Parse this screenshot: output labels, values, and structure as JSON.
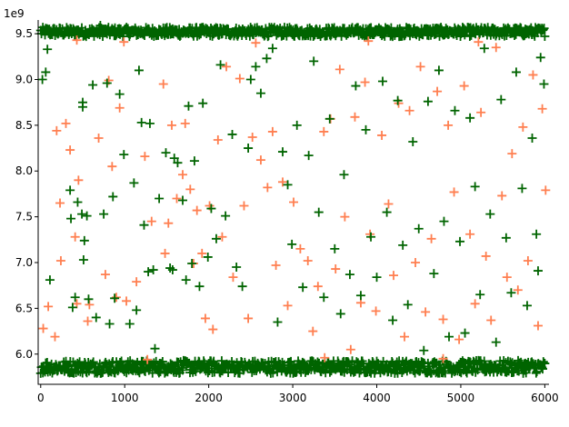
{
  "chart_data": {
    "type": "scatter",
    "title": "",
    "xlabel": "",
    "ylabel": "",
    "y_scale_label": "1e9",
    "xlim": [
      -30,
      6050
    ],
    "ylim": [
      5.67,
      9.65
    ],
    "x_ticks": [
      0,
      1000,
      2000,
      3000,
      4000,
      5000,
      6000
    ],
    "x_tick_labels": [
      "0",
      "1000",
      "2000",
      "3000",
      "4000",
      "5000",
      "6000"
    ],
    "y_ticks": [
      6.0,
      6.5,
      7.0,
      7.5,
      8.0,
      8.5,
      9.0,
      9.5
    ],
    "y_tick_labels": [
      "6.0",
      "6.5",
      "7.0",
      "7.5",
      "8.0",
      "8.5",
      "9.0",
      "9.5"
    ],
    "grid": false,
    "marker": "+",
    "series": [
      {
        "color": "#ff7f50",
        "points": [
          [
            30,
            6.28
          ],
          [
            90,
            6.52
          ],
          [
            170,
            6.19
          ],
          [
            190,
            8.44
          ],
          [
            230,
            7.65
          ],
          [
            240,
            7.02
          ],
          [
            300,
            8.52
          ],
          [
            350,
            8.23
          ],
          [
            410,
            7.28
          ],
          [
            430,
            6.55
          ],
          [
            450,
            7.9
          ],
          [
            560,
            6.36
          ],
          [
            580,
            6.54
          ],
          [
            690,
            8.36
          ],
          [
            770,
            6.87
          ],
          [
            810,
            8.99
          ],
          [
            850,
            8.05
          ],
          [
            900,
            6.62
          ],
          [
            940,
            8.69
          ],
          [
            1020,
            6.58
          ],
          [
            1140,
            6.79
          ],
          [
            1240,
            8.16
          ],
          [
            1320,
            7.45
          ],
          [
            1460,
            8.95
          ],
          [
            1480,
            7.1
          ],
          [
            1520,
            7.43
          ],
          [
            1560,
            8.5
          ],
          [
            1620,
            7.7
          ],
          [
            1690,
            7.96
          ],
          [
            1720,
            8.52
          ],
          [
            1780,
            7.8
          ],
          [
            1820,
            6.99
          ],
          [
            1860,
            7.57
          ],
          [
            1920,
            7.1
          ],
          [
            1960,
            6.39
          ],
          [
            2010,
            7.62
          ],
          [
            2050,
            6.27
          ],
          [
            2110,
            8.34
          ],
          [
            2160,
            7.28
          ],
          [
            2210,
            9.14
          ],
          [
            2290,
            6.84
          ],
          [
            2370,
            9.01
          ],
          [
            2420,
            7.62
          ],
          [
            2470,
            6.39
          ],
          [
            2520,
            8.37
          ],
          [
            2620,
            8.12
          ],
          [
            2700,
            7.82
          ],
          [
            2760,
            8.43
          ],
          [
            2800,
            6.97
          ],
          [
            2880,
            7.88
          ],
          [
            2940,
            6.53
          ],
          [
            3010,
            7.66
          ],
          [
            3090,
            7.15
          ],
          [
            3180,
            7.02
          ],
          [
            3240,
            6.25
          ],
          [
            3300,
            6.74
          ],
          [
            3370,
            8.43
          ],
          [
            3450,
            8.57
          ],
          [
            3510,
            6.93
          ],
          [
            3560,
            9.11
          ],
          [
            3620,
            7.5
          ],
          [
            3690,
            6.05
          ],
          [
            3740,
            8.59
          ],
          [
            3810,
            6.56
          ],
          [
            3860,
            8.97
          ],
          [
            3920,
            7.31
          ],
          [
            3990,
            6.47
          ],
          [
            4060,
            8.39
          ],
          [
            4140,
            7.64
          ],
          [
            4200,
            6.86
          ],
          [
            4260,
            8.74
          ],
          [
            4330,
            6.19
          ],
          [
            4390,
            8.66
          ],
          [
            4460,
            7.0
          ],
          [
            4520,
            9.14
          ],
          [
            4580,
            6.46
          ],
          [
            4650,
            7.26
          ],
          [
            4720,
            8.87
          ],
          [
            4790,
            6.38
          ],
          [
            4850,
            8.5
          ],
          [
            4920,
            7.77
          ],
          [
            4980,
            6.16
          ],
          [
            5040,
            8.93
          ],
          [
            5110,
            7.31
          ],
          [
            5170,
            6.55
          ],
          [
            5240,
            8.64
          ],
          [
            5300,
            7.07
          ],
          [
            5360,
            6.37
          ],
          [
            5420,
            9.35
          ],
          [
            5490,
            7.73
          ],
          [
            5550,
            6.84
          ],
          [
            5610,
            8.19
          ],
          [
            5680,
            6.7
          ],
          [
            5740,
            8.48
          ],
          [
            5800,
            7.02
          ],
          [
            5860,
            9.05
          ],
          [
            5920,
            6.31
          ],
          [
            5970,
            8.68
          ],
          [
            6010,
            7.79
          ],
          [
            430,
            9.43
          ],
          [
            990,
            9.41
          ],
          [
            2560,
            9.4
          ],
          [
            3900,
            9.42
          ],
          [
            5210,
            9.41
          ],
          [
            1270,
            5.94
          ],
          [
            3380,
            5.96
          ],
          [
            4790,
            5.95
          ]
        ]
      },
      {
        "color": "#006400",
        "points": [
          [
            20,
            9.0
          ],
          [
            60,
            9.08
          ],
          [
            80,
            9.33
          ],
          [
            110,
            6.81
          ],
          [
            350,
            7.79
          ],
          [
            360,
            7.48
          ],
          [
            380,
            6.51
          ],
          [
            410,
            6.62
          ],
          [
            440,
            7.66
          ],
          [
            490,
            7.53
          ],
          [
            500,
            8.75
          ],
          [
            500,
            8.7
          ],
          [
            510,
            7.03
          ],
          [
            520,
            7.24
          ],
          [
            550,
            7.51
          ],
          [
            570,
            6.6
          ],
          [
            620,
            8.94
          ],
          [
            660,
            6.4
          ],
          [
            710,
            9.59
          ],
          [
            750,
            7.53
          ],
          [
            790,
            8.96
          ],
          [
            820,
            6.33
          ],
          [
            860,
            7.72
          ],
          [
            880,
            6.61
          ],
          [
            940,
            8.84
          ],
          [
            990,
            8.18
          ],
          [
            1060,
            6.33
          ],
          [
            1110,
            7.87
          ],
          [
            1140,
            6.48
          ],
          [
            1170,
            9.1
          ],
          [
            1200,
            8.53
          ],
          [
            1230,
            7.41
          ],
          [
            1280,
            6.9
          ],
          [
            1300,
            8.52
          ],
          [
            1340,
            6.92
          ],
          [
            1360,
            6.06
          ],
          [
            1410,
            7.7
          ],
          [
            1490,
            8.2
          ],
          [
            1540,
            6.94
          ],
          [
            1570,
            6.92
          ],
          [
            1590,
            8.14
          ],
          [
            1630,
            8.09
          ],
          [
            1690,
            7.68
          ],
          [
            1730,
            6.81
          ],
          [
            1760,
            8.71
          ],
          [
            1800,
            6.99
          ],
          [
            1830,
            8.11
          ],
          [
            1890,
            6.74
          ],
          [
            1930,
            8.74
          ],
          [
            1990,
            7.06
          ],
          [
            2030,
            7.59
          ],
          [
            2090,
            7.26
          ],
          [
            2140,
            9.16
          ],
          [
            2200,
            7.51
          ],
          [
            2280,
            8.4
          ],
          [
            2330,
            6.95
          ],
          [
            2400,
            6.74
          ],
          [
            2470,
            8.25
          ],
          [
            2500,
            9.0
          ],
          [
            2560,
            9.14
          ],
          [
            2620,
            8.85
          ],
          [
            2690,
            9.23
          ],
          [
            2760,
            9.34
          ],
          [
            2820,
            6.35
          ],
          [
            2880,
            8.21
          ],
          [
            2940,
            7.85
          ],
          [
            2990,
            7.2
          ],
          [
            3050,
            8.5
          ],
          [
            3120,
            6.73
          ],
          [
            3190,
            8.17
          ],
          [
            3250,
            9.2
          ],
          [
            3310,
            7.55
          ],
          [
            3370,
            6.62
          ],
          [
            3440,
            8.57
          ],
          [
            3500,
            7.15
          ],
          [
            3570,
            6.44
          ],
          [
            3610,
            7.96
          ],
          [
            3680,
            6.87
          ],
          [
            3750,
            8.93
          ],
          [
            3810,
            6.64
          ],
          [
            3870,
            8.45
          ],
          [
            3930,
            7.28
          ],
          [
            4000,
            6.84
          ],
          [
            4070,
            8.98
          ],
          [
            4120,
            7.55
          ],
          [
            4190,
            6.37
          ],
          [
            4250,
            8.77
          ],
          [
            4310,
            7.19
          ],
          [
            4370,
            6.54
          ],
          [
            4430,
            8.32
          ],
          [
            4500,
            7.37
          ],
          [
            4560,
            6.04
          ],
          [
            4610,
            8.76
          ],
          [
            4680,
            6.88
          ],
          [
            4740,
            9.1
          ],
          [
            4800,
            7.45
          ],
          [
            4860,
            6.19
          ],
          [
            4930,
            8.66
          ],
          [
            4990,
            7.23
          ],
          [
            5050,
            6.23
          ],
          [
            5110,
            8.58
          ],
          [
            5170,
            7.83
          ],
          [
            5230,
            6.65
          ],
          [
            5280,
            9.34
          ],
          [
            5350,
            7.53
          ],
          [
            5420,
            6.13
          ],
          [
            5480,
            8.78
          ],
          [
            5540,
            7.27
          ],
          [
            5600,
            6.67
          ],
          [
            5660,
            9.08
          ],
          [
            5730,
            7.81
          ],
          [
            5790,
            6.53
          ],
          [
            5850,
            8.36
          ],
          [
            5900,
            7.31
          ],
          [
            5950,
            9.24
          ],
          [
            5990,
            8.95
          ],
          [
            5920,
            6.91
          ]
        ]
      }
    ],
    "bands": [
      {
        "color": "#006400",
        "y_center": 9.52,
        "y_spread": 0.05,
        "x_range": [
          0,
          6000
        ]
      },
      {
        "color": "#006400",
        "y_center": 5.86,
        "y_spread": 0.07,
        "x_range": [
          0,
          6000
        ]
      }
    ]
  },
  "colors": {
    "axis": "#000000",
    "background": "#ffffff"
  }
}
